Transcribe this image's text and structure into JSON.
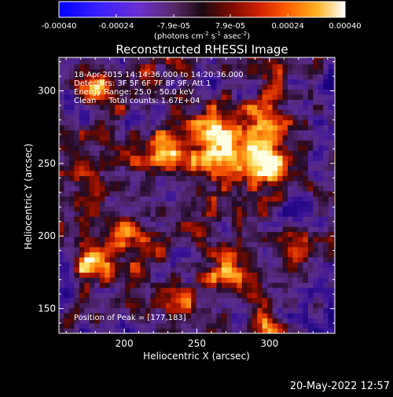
{
  "chart_data": {
    "type": "heatmap",
    "title": "Reconstructed RHESSI Image",
    "xlabel": "Heliocentric X (arcsec)",
    "ylabel": "Heliocentric Y (arcsec)",
    "xlim": [
      155,
      345
    ],
    "ylim": [
      133,
      323
    ],
    "x_ticks": [
      200,
      250,
      300
    ],
    "y_ticks": [
      150,
      200,
      250,
      300
    ],
    "x_tick_labels": [
      "200",
      "250",
      "300"
    ],
    "y_tick_labels": [
      "150",
      "200",
      "250",
      "300"
    ],
    "colorbar": {
      "min": -0.0004,
      "max": 0.0004,
      "tick_values": [
        -0.0004,
        -0.00024,
        -7.9e-05,
        7.9e-05,
        0.00024,
        0.0004
      ],
      "tick_labels": [
        "-0.00040",
        "-0.00024",
        "-7.9e-05",
        "7.9e-05",
        "0.00024",
        "0.00040"
      ],
      "unit_label": "(photons cm",
      "unit_exp1": "-2",
      "unit_mid1": " s",
      "unit_exp2": "-1",
      "unit_mid2": " asec",
      "unit_exp3": "-2",
      "unit_end": ")",
      "colors": [
        "#0000ff",
        "#6a2fff",
        "#5a2a7a",
        "#1a0a10",
        "#b01000",
        "#ff5a00",
        "#ffc020",
        "#ffffff"
      ]
    },
    "annotations": [
      "18-Apr-2015 14:14:36.000 to 14:20:36.000",
      "Detectors: 3F 5F 6F 7F 8F 9F, Att 1",
      "Energy Range: 25.0 - 50.0 keV",
      "Clean     Total counts: 1.67E+04"
    ],
    "peak_label": "Position of Peak = [177,183]",
    "peak": [
      177,
      183
    ],
    "sources": [
      {
        "x": 177,
        "y": 179,
        "amp": 1.15,
        "sigma": 8
      },
      {
        "x": 272,
        "y": 264,
        "amp": 0.95,
        "sigma": 18
      },
      {
        "x": 297,
        "y": 250,
        "amp": 0.85,
        "sigma": 11
      },
      {
        "x": 226,
        "y": 262,
        "amp": 0.75,
        "sigma": 11
      },
      {
        "x": 298,
        "y": 140,
        "amp": 0.9,
        "sigma": 7
      },
      {
        "x": 272,
        "y": 178,
        "amp": 0.7,
        "sigma": 11
      },
      {
        "x": 300,
        "y": 282,
        "amp": 0.7,
        "sigma": 9
      },
      {
        "x": 178,
        "y": 300,
        "amp": 0.7,
        "sigma": 8
      },
      {
        "x": 208,
        "y": 200,
        "amp": 0.45,
        "sigma": 10
      },
      {
        "x": 320,
        "y": 196,
        "amp": 0.5,
        "sigma": 9
      },
      {
        "x": 170,
        "y": 245,
        "amp": 0.55,
        "sigma": 7
      },
      {
        "x": 245,
        "y": 150,
        "amp": 0.45,
        "sigma": 9
      },
      {
        "x": 305,
        "y": 172,
        "amp": 0.45,
        "sigma": 8
      },
      {
        "x": 336,
        "y": 302,
        "amp": -0.5,
        "sigma": 10
      },
      {
        "x": 318,
        "y": 218,
        "amp": -0.6,
        "sigma": 8
      },
      {
        "x": 334,
        "y": 255,
        "amp": -0.45,
        "sigma": 9
      },
      {
        "x": 210,
        "y": 286,
        "amp": -0.35,
        "sigma": 10
      },
      {
        "x": 158,
        "y": 158,
        "amp": -0.4,
        "sigma": 8
      },
      {
        "x": 340,
        "y": 168,
        "amp": -0.4,
        "sigma": 9
      }
    ]
  },
  "footer": {
    "date": "20-May-2022 12:57"
  }
}
